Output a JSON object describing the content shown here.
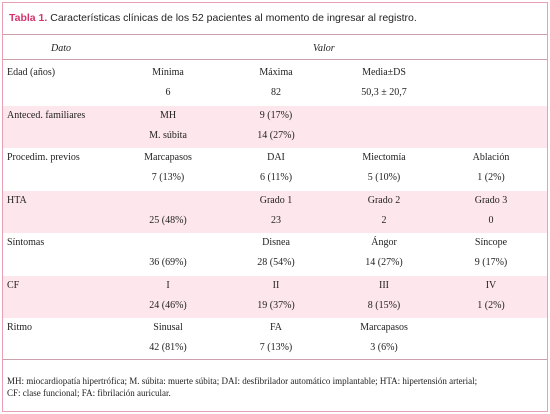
{
  "title": {
    "label": "Tabla 1.",
    "text": "Características clínicas de los 52 pacientes al momento de ingresar al registro."
  },
  "header": [
    "Dato",
    "Valor"
  ],
  "groups": [
    {
      "label": "Edad (años)",
      "rows": [
        [
          "Mínima",
          "Máxima",
          "Media±DS",
          null
        ],
        [
          "6",
          "82",
          "50,3 ± 20,7",
          null
        ]
      ]
    },
    {
      "label": "Anteced. familiares",
      "rows": [
        [
          "MH",
          "9 (17%)",
          null,
          null
        ],
        [
          "M. súbita",
          "14 (27%)",
          null,
          null
        ]
      ]
    },
    {
      "label": "Procedim. previos",
      "rows": [
        [
          "Marcapasos",
          "DAI",
          "Miectomía",
          "Ablación"
        ],
        [
          "7 (13%)",
          "6 (11%)",
          "5 (10%)",
          "1 (2%)"
        ]
      ]
    },
    {
      "label": "HTA",
      "rows": [
        [
          null,
          "Grado 1",
          "Grado 2",
          "Grado 3"
        ],
        [
          "25 (48%)",
          "23",
          "2",
          "0"
        ]
      ]
    },
    {
      "label": "Síntomas",
      "rows": [
        [
          null,
          "Disnea",
          "Ángor",
          "Síncope"
        ],
        [
          "36 (69%)",
          "28 (54%)",
          "14 (27%)",
          "9 (17%)"
        ]
      ]
    },
    {
      "label": "CF",
      "rows": [
        [
          "I",
          "II",
          "III",
          "IV"
        ],
        [
          "24 (46%)",
          "19 (37%)",
          "8 (15%)",
          "1 (2%)"
        ]
      ]
    },
    {
      "label": "Ritmo",
      "rows": [
        [
          "Sinusal",
          "FA",
          "Marcapasos",
          null
        ],
        [
          "42 (81%)",
          "7 (13%)",
          "3 (6%)",
          null
        ]
      ]
    }
  ],
  "footnote": [
    "MH: miocardiopatía hipertrófica; M. súbita: muerte súbita; DAI: desfibrilador automático implantable; HTA: hipertensión arterial;",
    "CF: clase funcional; FA: fibrilación auricular."
  ]
}
